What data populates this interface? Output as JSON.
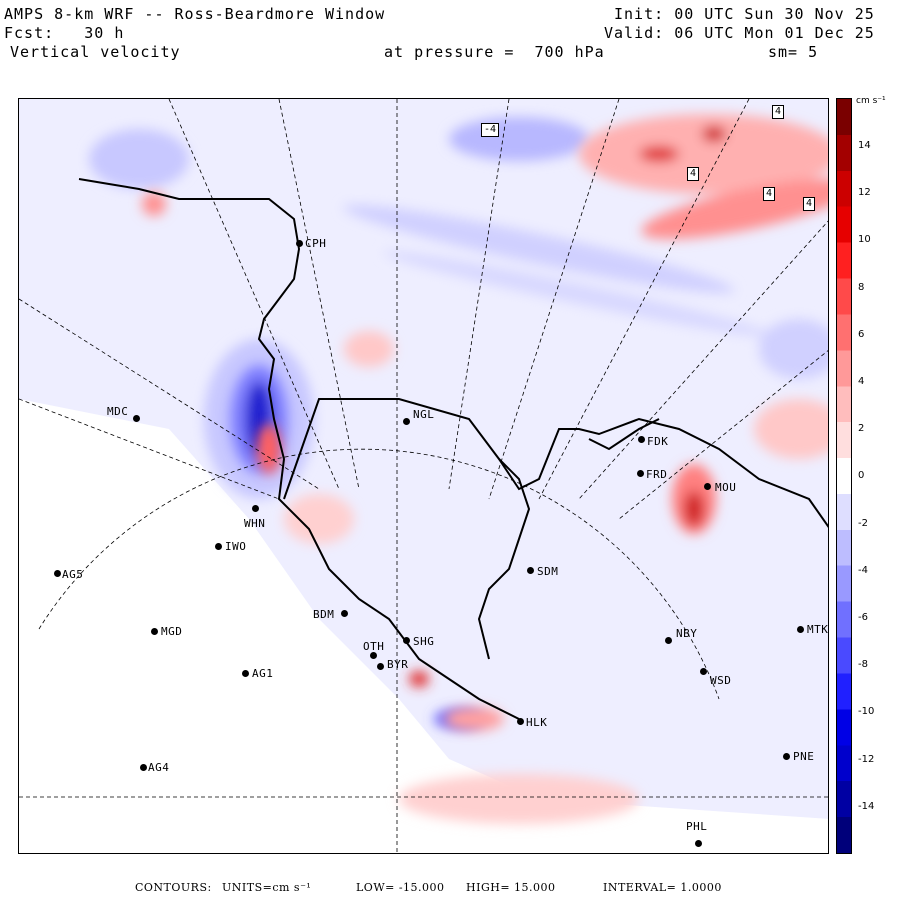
{
  "header": {
    "title": "AMPS 8-km WRF -- Ross-Beardmore Window",
    "fcst_label": "Fcst:",
    "fcst_value": "30 h",
    "variable": "Vertical velocity",
    "init_label": "Init:",
    "init_value": "00 UTC Sun 30 Nov 25",
    "valid_label": "Valid:",
    "valid_value": "06 UTC Mon 01 Dec 25",
    "pressure_label": "at pressure =",
    "pressure_value": "700 hPa",
    "smooth": "sm= 5"
  },
  "colorbar": {
    "units": "cm s⁻¹",
    "ticks": [
      "14",
      "12",
      "10",
      "8",
      "6",
      "4",
      "2",
      "0",
      "-2",
      "-4",
      "-6",
      "-8",
      "-10",
      "-12",
      "-14"
    ],
    "colors": [
      "#7a0000",
      "#a30000",
      "#cc0000",
      "#e60000",
      "#ff2020",
      "#ff4a4a",
      "#ff7070",
      "#ff9999",
      "#ffbdbd",
      "#ffdede",
      "#ffffff",
      "#dedeff",
      "#bdbdff",
      "#9999ff",
      "#7070ff",
      "#4a4aff",
      "#2020ff",
      "#0000e6",
      "#0000cc",
      "#0000a3",
      "#00007a"
    ]
  },
  "contour_labels": [
    "-4",
    "4",
    "4",
    "4",
    "4"
  ],
  "stations": [
    {
      "id": "CPH",
      "label": "CPH"
    },
    {
      "id": "MDC",
      "label": "MDC"
    },
    {
      "id": "NGL",
      "label": "NGL"
    },
    {
      "id": "FDK",
      "label": "FDK"
    },
    {
      "id": "FRD",
      "label": "FRD"
    },
    {
      "id": "MOU",
      "label": "MOU"
    },
    {
      "id": "WHN",
      "label": "WHN"
    },
    {
      "id": "IWO",
      "label": "IWO"
    },
    {
      "id": "AG5",
      "label": "AG5"
    },
    {
      "id": "SDM",
      "label": "SDM"
    },
    {
      "id": "BDM",
      "label": "BDM"
    },
    {
      "id": "MGD",
      "label": "MGD"
    },
    {
      "id": "SHG",
      "label": "SHG"
    },
    {
      "id": "OTH",
      "label": "OTH"
    },
    {
      "id": "BYR",
      "label": "BYR"
    },
    {
      "id": "NBY",
      "label": "NBY"
    },
    {
      "id": "MTK",
      "label": "MTK"
    },
    {
      "id": "AG1",
      "label": "AG1"
    },
    {
      "id": "WSD",
      "label": "WSD"
    },
    {
      "id": "HLK",
      "label": "HLK"
    },
    {
      "id": "PNE",
      "label": "PNE"
    },
    {
      "id": "AG4",
      "label": "AG4"
    },
    {
      "id": "PHL",
      "label": "PHL"
    }
  ],
  "footer": {
    "contours_label": "CONTOURS:",
    "units_text": "UNITS=cm s⁻¹",
    "low_text": "LOW= -15.000",
    "high_text": "HIGH= 15.000",
    "interval_text": "INTERVAL= 1.0000"
  }
}
